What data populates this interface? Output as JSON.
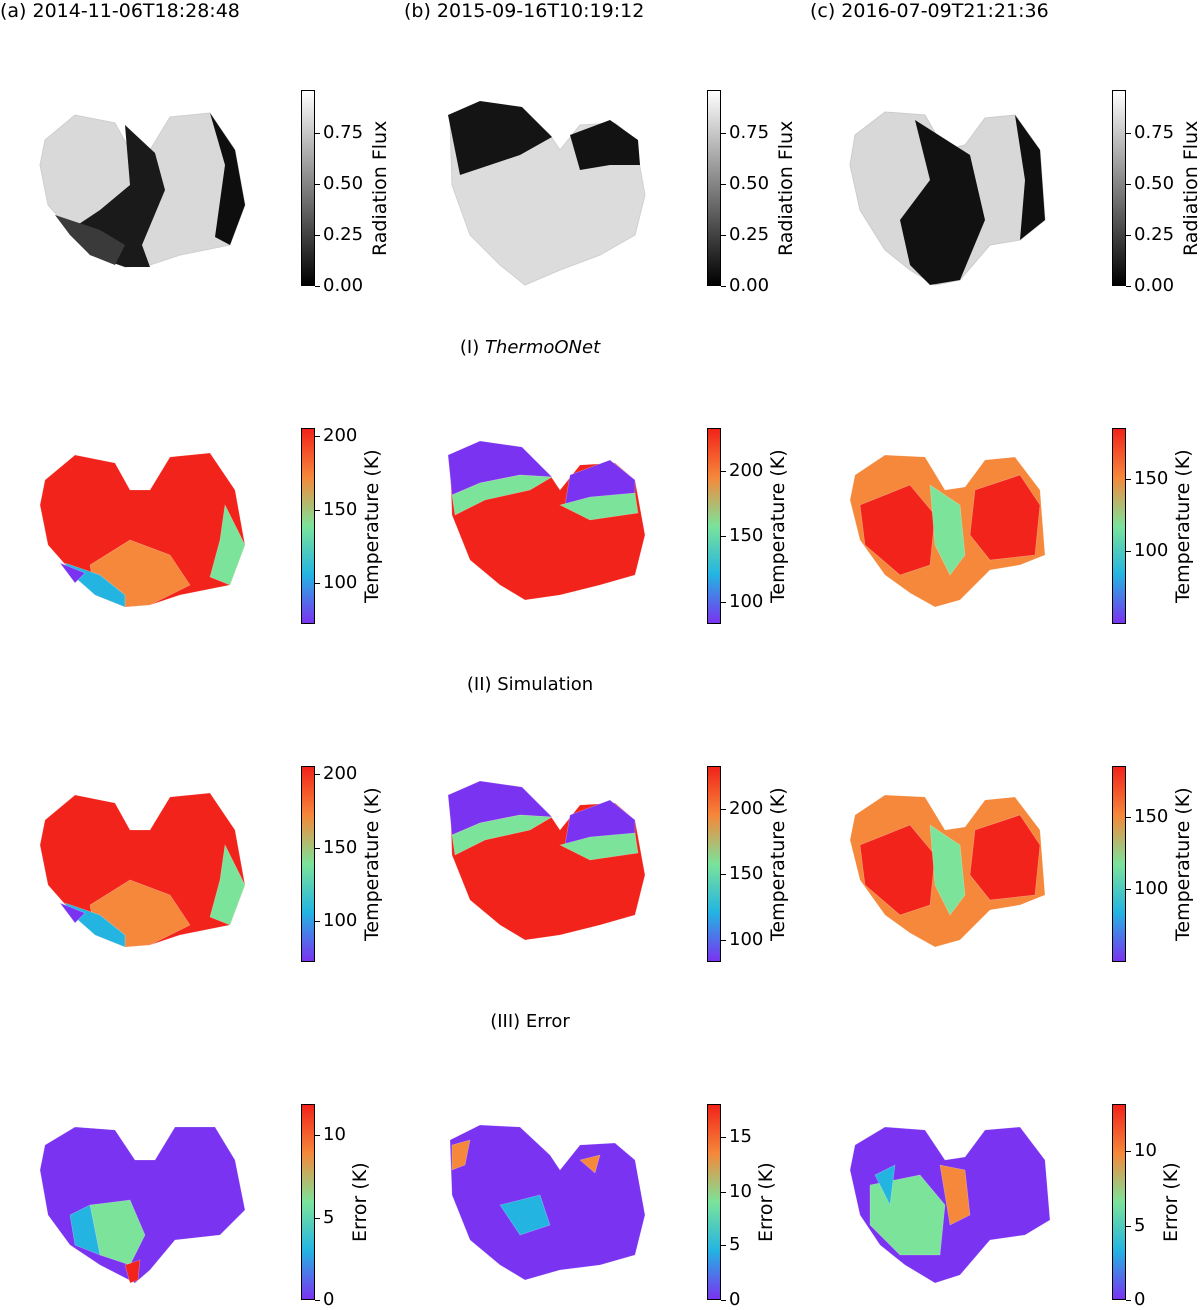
{
  "columns": [
    {
      "label": "(a) 2014-11-06T18:28:48"
    },
    {
      "label": "(b) 2015-09-16T10:19:12"
    },
    {
      "label": "(c) 2016-07-09T21:21:36"
    }
  ],
  "rows": {
    "thermoonet": {
      "prefix": "(I) ",
      "label": "ThermoONet"
    },
    "simulation": {
      "label": "(II) Simulation"
    },
    "error": {
      "label": "(III) Error"
    }
  },
  "colorbars": {
    "flux": {
      "label": "Radiation Flux",
      "colormap": "gray",
      "ticks": [
        {
          "text": "0.00",
          "frac": 0.0
        },
        {
          "text": "0.25",
          "frac": 0.26
        },
        {
          "text": "0.50",
          "frac": 0.52
        },
        {
          "text": "0.75",
          "frac": 0.78
        }
      ]
    },
    "temperature": [
      {
        "label": "Temperature (K)",
        "ticks": [
          {
            "text": "100",
            "frac": 0.21
          },
          {
            "text": "150",
            "frac": 0.58
          },
          {
            "text": "200",
            "frac": 0.96
          }
        ]
      },
      {
        "label": "Temperature (K)",
        "ticks": [
          {
            "text": "100",
            "frac": 0.11
          },
          {
            "text": "150",
            "frac": 0.45
          },
          {
            "text": "200",
            "frac": 0.78
          }
        ]
      },
      {
        "label": "Temperature (K)",
        "ticks": [
          {
            "text": "100",
            "frac": 0.37
          },
          {
            "text": "150",
            "frac": 0.74
          }
        ]
      }
    ],
    "error": [
      {
        "label": "Error (K)",
        "ticks": [
          {
            "text": "0",
            "frac": 0.0
          },
          {
            "text": "5",
            "frac": 0.42
          },
          {
            "text": "10",
            "frac": 0.84
          }
        ]
      },
      {
        "label": "Error (K)",
        "ticks": [
          {
            "text": "0",
            "frac": 0.0
          },
          {
            "text": "5",
            "frac": 0.28
          },
          {
            "text": "10",
            "frac": 0.55
          },
          {
            "text": "15",
            "frac": 0.83
          }
        ]
      },
      {
        "label": "Error (K)",
        "ticks": [
          {
            "text": "0",
            "frac": 0.0
          },
          {
            "text": "5",
            "frac": 0.38
          },
          {
            "text": "10",
            "frac": 0.76
          }
        ]
      }
    ]
  },
  "colors": {
    "hot": "#f2231a",
    "warm": "#f5883a",
    "mid": "#7be39a",
    "cool": "#23b4e2",
    "cold": "#7a33f0"
  }
}
